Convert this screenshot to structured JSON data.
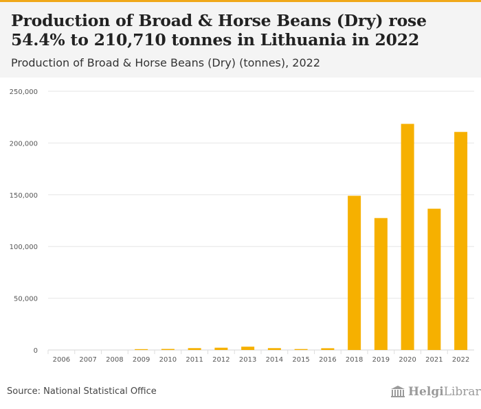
{
  "header": {
    "title": "Production of Broad & Horse Beans (Dry) rose 54.4% to 210,710 tonnes in Lithuania in 2022",
    "subtitle": "Production of Broad & Horse Beans (Dry) (tonnes), 2022"
  },
  "footer": {
    "source": "Source: National Statistical Office",
    "brand_bold": "Helgi",
    "brand_rest": "Library."
  },
  "colors": {
    "bar": "#f6b000",
    "accent": "#f0a81a",
    "grid": "#e6e6e6",
    "axis_text": "#555555"
  },
  "chart_data": {
    "type": "bar",
    "title": "Production of Broad & Horse Beans (Dry) (tonnes), 2022",
    "xlabel": "",
    "ylabel": "",
    "categories": [
      "2006",
      "2007",
      "2008",
      "2009",
      "2010",
      "2011",
      "2012",
      "2013",
      "2014",
      "2015",
      "2016",
      "2018",
      "2019",
      "2020",
      "2021",
      "2022"
    ],
    "values": [
      0,
      0,
      0,
      800,
      1000,
      1800,
      2200,
      3200,
      1800,
      900,
      1700,
      149000,
      127500,
      218500,
      136500,
      210710
    ],
    "ylim": [
      0,
      250000
    ],
    "yticks": [
      0,
      50000,
      100000,
      150000,
      200000,
      250000
    ],
    "ytick_labels": [
      "0",
      "50,000",
      "100,000",
      "150,000",
      "200,000",
      "250,000"
    ],
    "grid": true,
    "legend": "none"
  }
}
